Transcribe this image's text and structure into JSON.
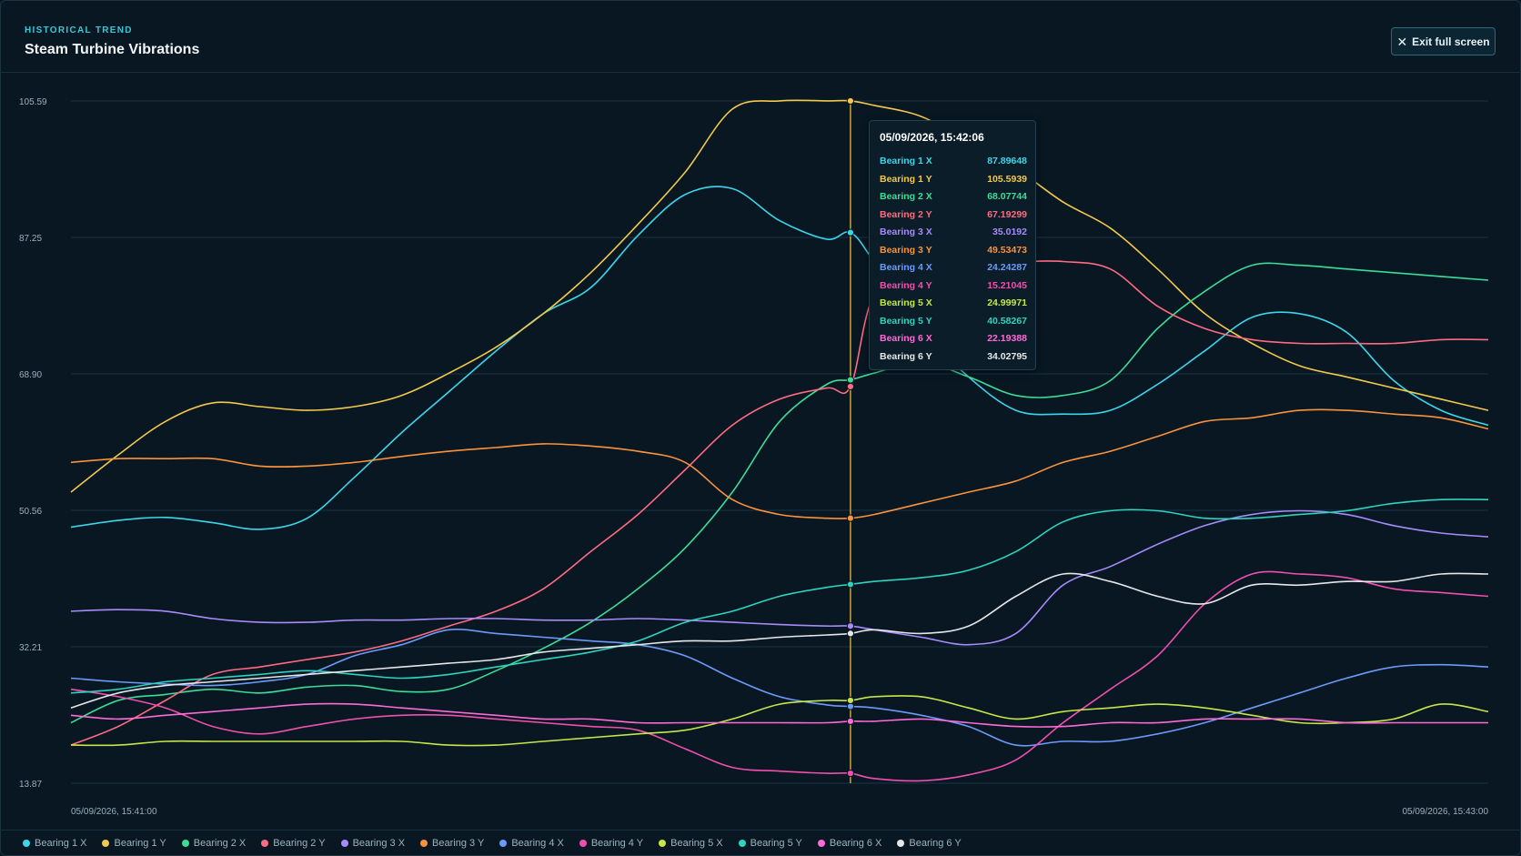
{
  "header": {
    "eyebrow": "HISTORICAL TREND",
    "title": "Steam Turbine Vibrations",
    "exit_label": "Exit full screen",
    "exit_icon": "close-icon"
  },
  "tooltip": {
    "timestamp": "05/09/2026, 15:42:06",
    "rows": [
      {
        "label": "Bearing 1 X",
        "value": "87.89648"
      },
      {
        "label": "Bearing 1 Y",
        "value": "105.5939"
      },
      {
        "label": "Bearing 2 X",
        "value": "68.07744"
      },
      {
        "label": "Bearing 2 Y",
        "value": "67.19299"
      },
      {
        "label": "Bearing 3 X",
        "value": "35.0192"
      },
      {
        "label": "Bearing 3 Y",
        "value": "49.53473"
      },
      {
        "label": "Bearing 4 X",
        "value": "24.24287"
      },
      {
        "label": "Bearing 4 Y",
        "value": "15.21045"
      },
      {
        "label": "Bearing 5 X",
        "value": "24.99971"
      },
      {
        "label": "Bearing 5 Y",
        "value": "40.58267"
      },
      {
        "label": "Bearing 6 X",
        "value": "22.19388"
      },
      {
        "label": "Bearing 6 Y",
        "value": "34.02795"
      }
    ]
  },
  "chart_data": {
    "type": "line",
    "title": "Steam Turbine Vibrations",
    "ylim": [
      13.87,
      105.59
    ],
    "yticks": [
      "105.59",
      "87.25",
      "68.90",
      "50.56",
      "32.21",
      "13.87"
    ],
    "x_start_label": "05/09/2026, 15:41:00",
    "x_end_label": "05/09/2026, 15:43:00",
    "x": [
      0,
      4,
      8,
      12,
      16,
      20,
      24,
      28,
      32,
      36,
      40,
      44,
      48,
      52,
      56,
      60,
      64,
      66,
      68,
      72,
      76,
      80,
      84,
      88,
      92,
      96,
      100,
      104,
      108,
      112,
      116,
      120
    ],
    "crosshair_x": 66,
    "grid": true,
    "legend_position": "bottom",
    "series": [
      {
        "name": "Bearing 1 X",
        "color": "#3cd6ea",
        "values": [
          48.3,
          49.2,
          49.6,
          48.9,
          48.0,
          49.5,
          55.0,
          61.0,
          66.5,
          72.0,
          77.0,
          80.5,
          87.5,
          93.0,
          93.8,
          89.5,
          87.0,
          87.9,
          84.0,
          75.0,
          68.5,
          64.0,
          63.5,
          64.0,
          67.5,
          72.0,
          76.5,
          77.0,
          74.5,
          68.0,
          64.0,
          62.0
        ]
      },
      {
        "name": "Bearing 1 Y",
        "color": "#f2c94c",
        "values": [
          53.0,
          58.0,
          62.5,
          65.0,
          64.5,
          64.0,
          64.5,
          66.0,
          69.0,
          72.5,
          77.0,
          82.5,
          89.0,
          96.0,
          104.5,
          105.6,
          105.6,
          105.6,
          105.0,
          103.5,
          100.0,
          96.5,
          92.0,
          88.5,
          83.0,
          77.0,
          73.0,
          70.0,
          68.5,
          67.0,
          65.5,
          64.0
        ]
      },
      {
        "name": "Bearing 2 X",
        "color": "#3ddc97",
        "values": [
          22.0,
          25.0,
          25.8,
          26.5,
          26.0,
          26.8,
          27.0,
          26.2,
          26.5,
          29.0,
          32.0,
          35.5,
          40.0,
          45.5,
          53.0,
          62.5,
          67.5,
          68.1,
          69.0,
          70.5,
          68.5,
          66.0,
          66.0,
          68.0,
          75.0,
          80.0,
          83.5,
          83.5,
          83.0,
          82.5,
          82.0,
          81.5
        ]
      },
      {
        "name": "Bearing 2 Y",
        "color": "#ff6b81",
        "values": [
          19.0,
          21.5,
          25.0,
          28.5,
          29.5,
          30.5,
          31.5,
          33.0,
          35.0,
          37.0,
          40.0,
          45.0,
          50.0,
          56.0,
          62.0,
          65.5,
          67.0,
          67.2,
          79.5,
          83.5,
          84.0,
          84.0,
          84.0,
          83.0,
          78.0,
          75.0,
          73.5,
          73.0,
          73.0,
          73.0,
          73.5,
          73.5
        ]
      },
      {
        "name": "Bearing 3 X",
        "color": "#a78bfa",
        "values": [
          37.0,
          37.2,
          37.0,
          36.0,
          35.5,
          35.5,
          35.8,
          35.8,
          36.0,
          36.0,
          35.8,
          35.8,
          36.0,
          35.8,
          35.5,
          35.2,
          35.0,
          35.0,
          34.5,
          33.5,
          32.5,
          34.0,
          40.5,
          43.0,
          46.0,
          48.5,
          50.0,
          50.5,
          50.0,
          48.5,
          47.5,
          47.0
        ]
      },
      {
        "name": "Bearing 3 Y",
        "color": "#fb923c",
        "values": [
          57.0,
          57.5,
          57.5,
          57.5,
          56.5,
          56.5,
          57.0,
          57.8,
          58.5,
          59.0,
          59.5,
          59.2,
          58.5,
          57.0,
          52.0,
          50.0,
          49.5,
          49.5,
          50.0,
          51.5,
          53.0,
          54.5,
          57.0,
          58.5,
          60.5,
          62.5,
          63.0,
          64.0,
          64.0,
          63.5,
          63.0,
          61.5
        ]
      },
      {
        "name": "Bearing 4 X",
        "color": "#6b9bfa",
        "values": [
          28.0,
          27.5,
          27.2,
          27.0,
          27.5,
          28.5,
          31.0,
          32.5,
          34.5,
          34.0,
          33.5,
          33.0,
          32.5,
          31.0,
          28.0,
          25.5,
          24.4,
          24.2,
          24.0,
          23.0,
          21.5,
          19.0,
          19.5,
          19.5,
          20.5,
          22.0,
          24.0,
          26.0,
          28.0,
          29.5,
          29.8,
          29.5
        ]
      },
      {
        "name": "Bearing 4 Y",
        "color": "#f04fae",
        "values": [
          26.5,
          25.5,
          24.0,
          21.5,
          20.5,
          21.5,
          22.5,
          23.0,
          23.0,
          22.5,
          22.0,
          21.5,
          21.0,
          18.5,
          16.0,
          15.5,
          15.2,
          15.2,
          14.5,
          14.2,
          15.0,
          17.0,
          22.0,
          26.5,
          31.0,
          38.0,
          42.0,
          42.0,
          41.5,
          40.0,
          39.5,
          39.0
        ]
      },
      {
        "name": "Bearing 5 X",
        "color": "#c7e64a",
        "values": [
          19.0,
          19.0,
          19.5,
          19.5,
          19.5,
          19.5,
          19.5,
          19.5,
          19.0,
          19.0,
          19.5,
          20.0,
          20.5,
          21.0,
          22.5,
          24.5,
          25.0,
          25.0,
          25.5,
          25.5,
          24.0,
          22.5,
          23.5,
          24.0,
          24.5,
          24.0,
          23.0,
          22.0,
          22.0,
          22.5,
          24.5,
          23.5
        ]
      },
      {
        "name": "Bearing 5 Y",
        "color": "#2dd4bf",
        "values": [
          26.0,
          26.5,
          27.5,
          28.0,
          28.5,
          29.0,
          28.5,
          28.0,
          28.5,
          29.5,
          30.5,
          31.5,
          33.0,
          35.5,
          37.0,
          39.0,
          40.2,
          40.6,
          41.0,
          41.5,
          42.5,
          45.0,
          49.0,
          50.5,
          50.5,
          49.5,
          49.5,
          50.0,
          50.5,
          51.5,
          52.0,
          52.0
        ]
      },
      {
        "name": "Bearing 6 X",
        "color": "#ff6ad5",
        "values": [
          23.0,
          22.5,
          23.0,
          23.5,
          24.0,
          24.5,
          24.5,
          24.0,
          23.5,
          23.0,
          22.5,
          22.5,
          22.0,
          22.0,
          22.0,
          22.0,
          22.0,
          22.2,
          22.2,
          22.5,
          22.0,
          21.5,
          21.5,
          22.0,
          22.0,
          22.5,
          22.5,
          22.5,
          22.0,
          22.0,
          22.0,
          22.0
        ]
      },
      {
        "name": "Bearing 6 Y",
        "color": "#e5e7eb",
        "values": [
          24.0,
          26.0,
          27.0,
          27.5,
          28.0,
          28.5,
          29.0,
          29.5,
          30.0,
          30.5,
          31.5,
          32.0,
          32.5,
          33.0,
          33.0,
          33.5,
          33.8,
          34.0,
          34.5,
          34.0,
          35.0,
          39.0,
          42.0,
          41.0,
          39.0,
          38.0,
          40.5,
          40.5,
          41.0,
          41.0,
          42.0,
          42.0
        ]
      }
    ]
  }
}
